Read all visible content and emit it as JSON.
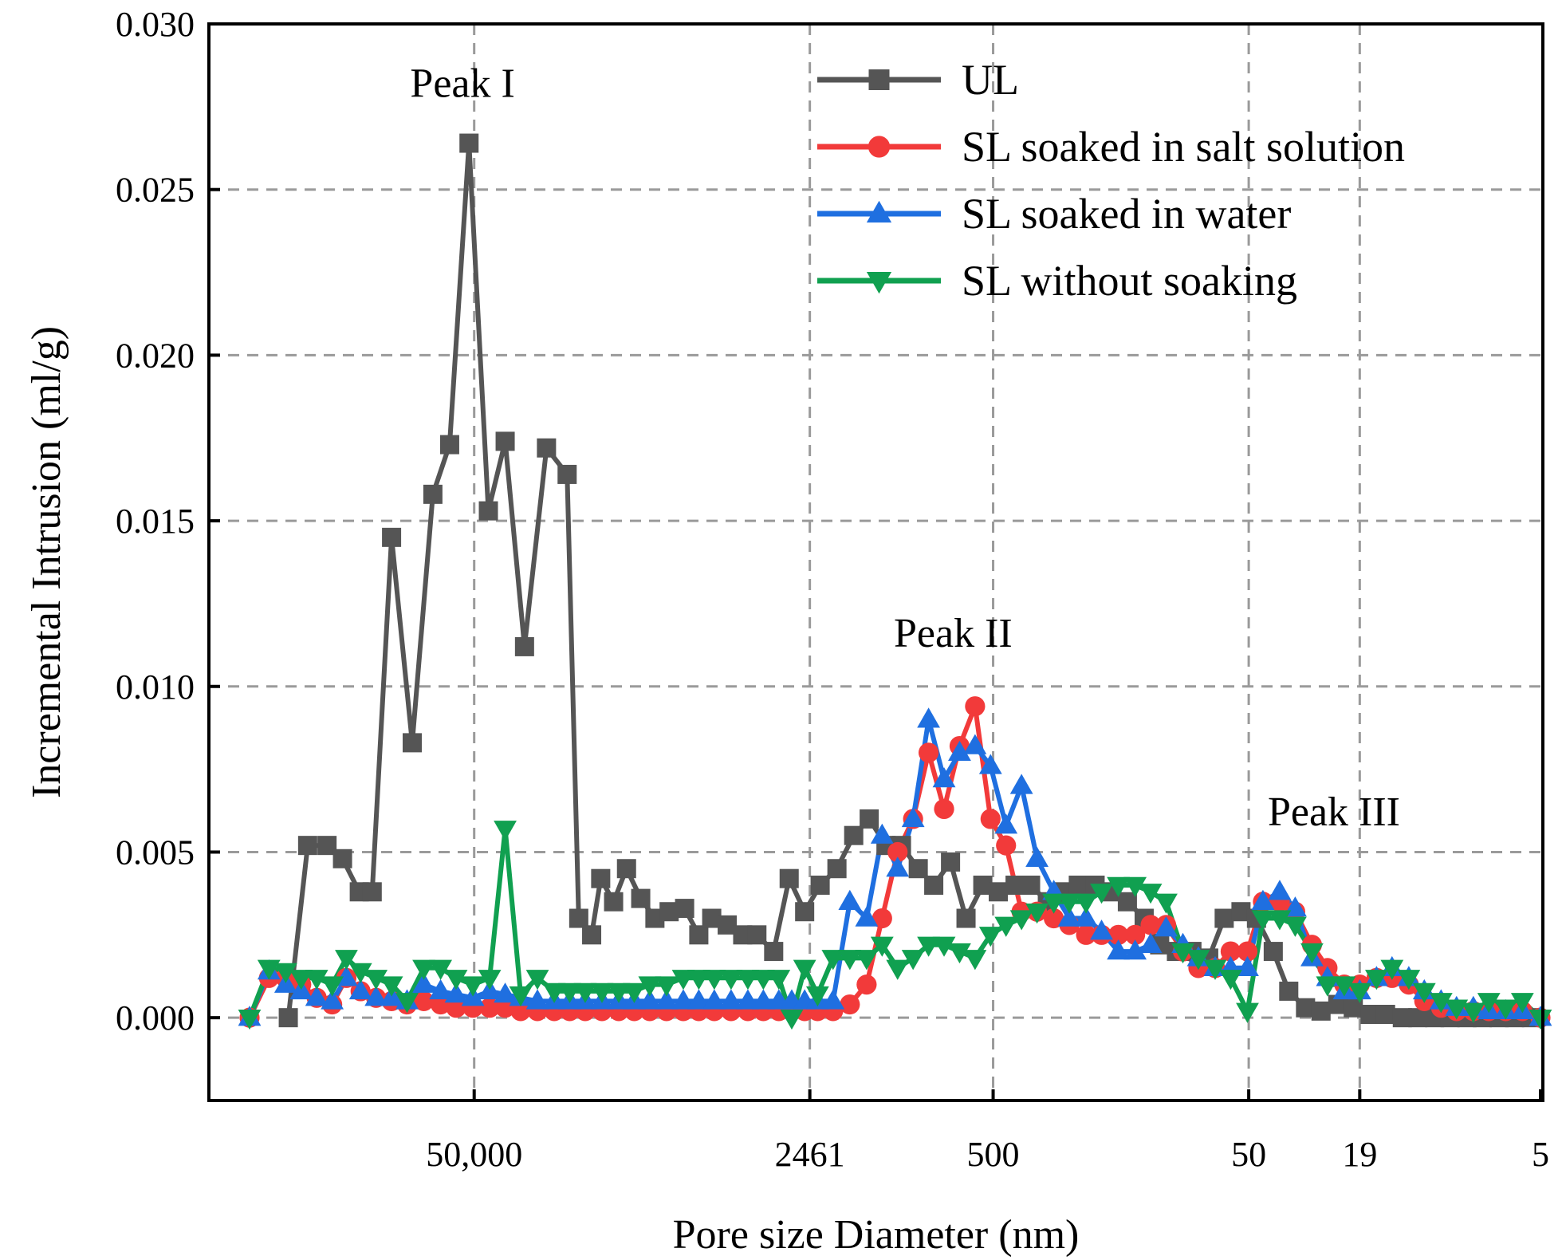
{
  "chart_data": {
    "type": "line",
    "title": "",
    "xlabel": "Pore size Diameter (nm)",
    "ylabel": "Incremental Intrusion (ml/g)",
    "ylim": [
      -0.0025,
      0.03
    ],
    "y_ticks": [
      "0.000",
      "0.005",
      "0.010",
      "0.015",
      "0.020",
      "0.025",
      "0.030"
    ],
    "y_tick_values": [
      0,
      0.005,
      0.01,
      0.015,
      0.02,
      0.025,
      0.03
    ],
    "x_range": [
      0,
      100
    ],
    "x_ticks": [
      {
        "label": "50,000",
        "pos": 17.4
      },
      {
        "label": "2461",
        "pos": 43.4
      },
      {
        "label": "500",
        "pos": 57.6
      },
      {
        "label": "50",
        "pos": 77.4
      },
      {
        "label": "19",
        "pos": 86.0
      },
      {
        "label": "5",
        "pos": 100
      }
    ],
    "legend_position": "top-right",
    "annotations": [
      {
        "text": "Peak I",
        "x": 16.5,
        "y": 0.0278
      },
      {
        "text": "Peak II",
        "x": 54.5,
        "y": 0.0112
      },
      {
        "text": "Peak III",
        "x": 84.0,
        "y": 0.0058
      }
    ],
    "series": [
      {
        "name": "UL",
        "color": "#555555",
        "marker": "square",
        "x": [
          3,
          4.5,
          6.0,
          7.2,
          8.5,
          9.5,
          11,
          12.6,
          14.2,
          15.5,
          17.0,
          18.5,
          19.8,
          21.3,
          23.0,
          24.6,
          25.5,
          26.5,
          27.2,
          28.2,
          29.2,
          30.3,
          31.4,
          32.5,
          33.7,
          34.8,
          35.8,
          37.0,
          38.2,
          39.3,
          40.6,
          41.8,
          43.0,
          44.2,
          45.5,
          46.8,
          48.0,
          49.3,
          50.5,
          51.8,
          53.0,
          54.3,
          55.5,
          56.8,
          58.0,
          59.3,
          60.5,
          61.8,
          63.0,
          64.2,
          65.5,
          66.8,
          68.0,
          69.3,
          70.5,
          71.8,
          73.0,
          74.3,
          75.5,
          76.8,
          78.0,
          79.3,
          80.5,
          81.8,
          83.0,
          84.3,
          85.5,
          86.8,
          88.0,
          89.3,
          90.5,
          91.8,
          93.0,
          94.3,
          95.5,
          96.8,
          98.0,
          99.3
        ],
        "y": [
          0,
          0.0052,
          0.0052,
          0.0048,
          0.0038,
          0.0038,
          0.0145,
          0.0083,
          0.0158,
          0.0173,
          0.0264,
          0.0153,
          0.0174,
          0.0112,
          0.0172,
          0.0164,
          0.003,
          0.0025,
          0.0042,
          0.0035,
          0.0045,
          0.0036,
          0.003,
          0.0032,
          0.0033,
          0.0025,
          0.003,
          0.0028,
          0.0025,
          0.0025,
          0.002,
          0.0042,
          0.0032,
          0.004,
          0.0045,
          0.0055,
          0.006,
          0.0052,
          0.0052,
          0.0045,
          0.004,
          0.0047,
          0.003,
          0.004,
          0.0038,
          0.004,
          0.004,
          0.0035,
          0.0038,
          0.004,
          0.004,
          0.0038,
          0.0035,
          0.003,
          0.0022,
          0.002,
          0.002,
          0.0018,
          0.003,
          0.0032,
          0.003,
          0.002,
          0.0008,
          0.0003,
          0.0002,
          0.0004,
          0.0003,
          0.0001,
          0.0001,
          0.0,
          0.0,
          0.0,
          0.0,
          0.0,
          0.0,
          0.0,
          0.0,
          0.0
        ]
      },
      {
        "name": "SL soaked in salt solution",
        "color": "#f23a3a",
        "marker": "circle",
        "x": [
          0,
          1.5,
          2.8,
          4.0,
          5.2,
          6.4,
          7.5,
          8.6,
          9.8,
          11.0,
          12.2,
          13.5,
          14.8,
          16.0,
          17.3,
          18.6,
          19.8,
          21.0,
          22.3,
          23.6,
          24.8,
          26.0,
          27.3,
          28.6,
          29.8,
          31.0,
          32.3,
          33.6,
          34.8,
          36.0,
          37.3,
          38.6,
          39.8,
          41.0,
          42.0,
          43.0,
          44.0,
          45.2,
          46.5,
          47.8,
          49.0,
          50.2,
          51.4,
          52.6,
          53.8,
          55.0,
          56.2,
          57.4,
          58.6,
          59.8,
          61.0,
          62.3,
          63.5,
          64.8,
          66.0,
          67.3,
          68.6,
          69.8,
          71.0,
          72.3,
          73.5,
          74.8,
          76.0,
          77.3,
          78.5,
          79.8,
          81.0,
          82.3,
          83.5,
          84.8,
          86.0,
          87.3,
          88.5,
          89.8,
          91.0,
          92.3,
          93.5,
          94.8,
          96.0,
          97.3,
          98.6,
          100
        ],
        "y": [
          0,
          0.0012,
          0.0012,
          0.001,
          0.0006,
          0.0004,
          0.0012,
          0.0008,
          0.0006,
          0.0005,
          0.0004,
          0.0005,
          0.0004,
          0.0003,
          0.0003,
          0.0003,
          0.0003,
          0.0002,
          0.0002,
          0.0002,
          0.0002,
          0.0002,
          0.0002,
          0.0002,
          0.0002,
          0.0002,
          0.0002,
          0.0002,
          0.0002,
          0.0002,
          0.0002,
          0.0002,
          0.0002,
          0.0002,
          0.0002,
          0.0002,
          0.0002,
          0.0002,
          0.0004,
          0.001,
          0.003,
          0.005,
          0.006,
          0.008,
          0.0063,
          0.0082,
          0.0094,
          0.006,
          0.0052,
          0.0032,
          0.0032,
          0.003,
          0.0028,
          0.0025,
          0.0025,
          0.0025,
          0.0025,
          0.0028,
          0.0028,
          0.002,
          0.0015,
          0.0015,
          0.002,
          0.002,
          0.0035,
          0.0035,
          0.0032,
          0.0022,
          0.0015,
          0.001,
          0.001,
          0.0012,
          0.0012,
          0.001,
          0.0005,
          0.0003,
          0.0002,
          0.0002,
          0.0002,
          0.0002,
          0.0002,
          0.0
        ]
      },
      {
        "name": "SL soaked in water",
        "color": "#1f6fe0",
        "marker": "triangle-up",
        "x": [
          0,
          1.5,
          2.8,
          4.0,
          5.2,
          6.4,
          7.5,
          8.6,
          9.8,
          11.0,
          12.2,
          13.5,
          14.8,
          16.0,
          17.3,
          18.6,
          19.8,
          21.0,
          22.3,
          23.6,
          24.8,
          26.0,
          27.3,
          28.6,
          29.8,
          31.0,
          32.3,
          33.6,
          34.8,
          36.0,
          37.3,
          38.6,
          39.8,
          41.0,
          42.0,
          43.0,
          44.0,
          45.2,
          46.5,
          47.8,
          49.0,
          50.2,
          51.4,
          52.6,
          53.8,
          55.0,
          56.2,
          57.4,
          58.6,
          59.8,
          61.0,
          62.3,
          63.5,
          64.8,
          66.0,
          67.3,
          68.6,
          69.8,
          71.0,
          72.3,
          73.5,
          74.8,
          76.0,
          77.3,
          78.5,
          79.8,
          81.0,
          82.3,
          83.5,
          84.8,
          86.0,
          87.3,
          88.5,
          89.8,
          91.0,
          92.3,
          93.5,
          94.8,
          96.0,
          97.3,
          98.6,
          100
        ],
        "y": [
          0,
          0.0014,
          0.001,
          0.0008,
          0.0006,
          0.0005,
          0.0012,
          0.0008,
          0.0006,
          0.0006,
          0.0005,
          0.001,
          0.0008,
          0.0007,
          0.0006,
          0.0008,
          0.0007,
          0.0006,
          0.0005,
          0.0005,
          0.0005,
          0.0005,
          0.0005,
          0.0005,
          0.0005,
          0.0005,
          0.0005,
          0.0005,
          0.0005,
          0.0005,
          0.0005,
          0.0005,
          0.0005,
          0.0005,
          0.0005,
          0.0005,
          0.0005,
          0.0005,
          0.0035,
          0.003,
          0.0055,
          0.0045,
          0.006,
          0.009,
          0.0072,
          0.008,
          0.0082,
          0.0076,
          0.0058,
          0.007,
          0.0048,
          0.0038,
          0.003,
          0.003,
          0.0026,
          0.002,
          0.002,
          0.0022,
          0.0027,
          0.0022,
          0.0018,
          0.0015,
          0.0015,
          0.0015,
          0.0035,
          0.0038,
          0.0033,
          0.0018,
          0.0012,
          0.0008,
          0.0008,
          0.0012,
          0.0015,
          0.0012,
          0.0008,
          0.0005,
          0.0003,
          0.0003,
          0.0002,
          0.0002,
          0.0002,
          0.0
        ]
      },
      {
        "name": "SL without soaking",
        "color": "#10a050",
        "marker": "triangle-down",
        "x": [
          0,
          1.5,
          2.8,
          4.0,
          5.2,
          6.4,
          7.5,
          8.6,
          9.8,
          11.0,
          12.2,
          13.5,
          14.8,
          16.0,
          17.3,
          18.6,
          19.8,
          21.0,
          22.3,
          23.6,
          24.8,
          26.0,
          27.3,
          28.6,
          29.8,
          31.0,
          32.3,
          33.6,
          34.8,
          36.0,
          37.3,
          38.6,
          39.8,
          41.0,
          42.0,
          43.0,
          44.0,
          45.2,
          46.5,
          47.8,
          49.0,
          50.2,
          51.4,
          52.6,
          53.8,
          55.0,
          56.2,
          57.4,
          58.6,
          59.8,
          61.0,
          62.3,
          63.5,
          64.8,
          66.0,
          67.3,
          68.6,
          69.8,
          71.0,
          72.3,
          73.5,
          74.8,
          76.0,
          77.3,
          78.5,
          79.8,
          81.0,
          82.3,
          83.5,
          84.8,
          86.0,
          87.3,
          88.5,
          89.8,
          91.0,
          92.3,
          93.5,
          94.8,
          96.0,
          97.3,
          98.6,
          100
        ],
        "y": [
          0,
          0.0015,
          0.0014,
          0.0012,
          0.0012,
          0.001,
          0.0018,
          0.0014,
          0.0012,
          0.001,
          0.0005,
          0.0015,
          0.0015,
          0.0012,
          0.001,
          0.0012,
          0.0057,
          0.0007,
          0.0012,
          0.0008,
          0.0008,
          0.0008,
          0.0008,
          0.0008,
          0.0008,
          0.001,
          0.001,
          0.0012,
          0.0012,
          0.0012,
          0.0012,
          0.0012,
          0.0012,
          0.0012,
          0.0,
          0.0015,
          0.0007,
          0.0018,
          0.0018,
          0.0018,
          0.0022,
          0.0015,
          0.0018,
          0.0022,
          0.0022,
          0.002,
          0.0018,
          0.0025,
          0.0028,
          0.003,
          0.0032,
          0.0035,
          0.0035,
          0.0035,
          0.0038,
          0.004,
          0.004,
          0.0038,
          0.0035,
          0.002,
          0.0018,
          0.0015,
          0.0012,
          0.0002,
          0.003,
          0.003,
          0.0028,
          0.002,
          0.001,
          0.001,
          0.0008,
          0.0012,
          0.0015,
          0.0012,
          0.0008,
          0.0005,
          0.0003,
          0.0002,
          0.0005,
          0.0003,
          0.0005,
          0.0
        ]
      }
    ]
  }
}
